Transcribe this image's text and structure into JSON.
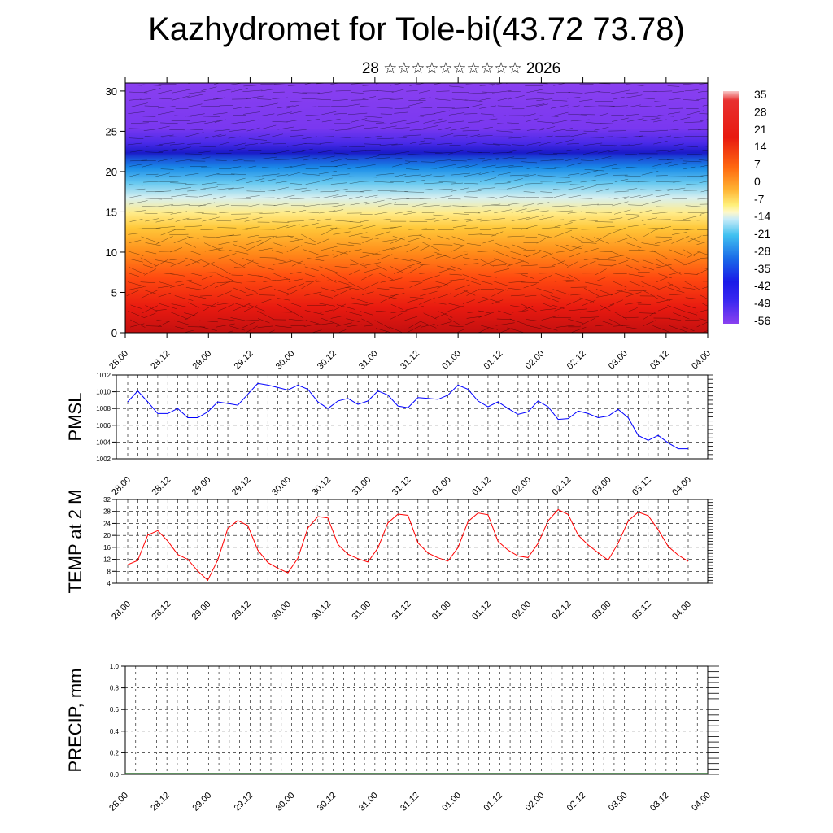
{
  "title": "Kazhydromet for Tole-bi(43.72 73.78)",
  "subtitle": "28 ☆☆☆☆☆☆☆☆☆☆ 2026",
  "chart_data": [
    {
      "type": "heatmap",
      "description_axis": "height",
      "x_tick_labels": [
        "28.00",
        "28.12",
        "29.00",
        "29.12",
        "30.00",
        "30.12",
        "31.00",
        "31.12",
        "01.00",
        "01.12",
        "02.00",
        "02.12",
        "03.00",
        "03.12",
        "04.00"
      ],
      "y_ticks": [
        0,
        5,
        10,
        15,
        20,
        25,
        30
      ],
      "ylim": [
        0,
        31
      ],
      "colorbar": {
        "labels": [
          "35",
          "28",
          "21",
          "14",
          "7",
          "0",
          "-7",
          "-14",
          "-21",
          "-28",
          "-35",
          "-42",
          "-49",
          "-56"
        ],
        "range": [
          -60,
          38
        ]
      }
    },
    {
      "type": "line",
      "ylabel": "PMSL",
      "x_tick_labels": [
        "28.00",
        "28.12",
        "29.00",
        "29.12",
        "30.00",
        "30.12",
        "31.00",
        "31.12",
        "01.00",
        "01.12",
        "02.00",
        "02.12",
        "03.00",
        "03.12",
        "04.00"
      ],
      "y_ticks": [
        1002,
        1004,
        1006,
        1008,
        1010,
        1012
      ],
      "ylim": [
        1002,
        1012
      ],
      "color": "#0000ff",
      "values": [
        1008.8,
        1010.1,
        1008.8,
        1007.4,
        1007.4,
        1008.0,
        1006.9,
        1006.9,
        1007.6,
        1008.8,
        1008.6,
        1008.4,
        1009.7,
        1011.0,
        1010.8,
        1010.5,
        1010.2,
        1010.8,
        1010.3,
        1008.8,
        1008.0,
        1008.9,
        1009.2,
        1008.5,
        1008.9,
        1010.1,
        1009.6,
        1008.3,
        1008.1,
        1009.3,
        1009.2,
        1009.1,
        1009.6,
        1010.8,
        1010.3,
        1008.9,
        1008.2,
        1008.8,
        1008.0,
        1007.3,
        1007.6,
        1008.9,
        1008.2,
        1006.7,
        1006.8,
        1007.7,
        1007.4,
        1006.9,
        1007.1,
        1007.9,
        1006.9,
        1004.8,
        1004.2,
        1004.8,
        1003.9,
        1003.2,
        1003.2
      ],
      "x_start": 0,
      "x_step": 0.25
    },
    {
      "type": "line",
      "ylabel": "TEMP at 2 M",
      "x_tick_labels": [
        "28.00",
        "28.12",
        "29.00",
        "29.12",
        "30.00",
        "30.12",
        "31.00",
        "31.12",
        "01.00",
        "01.12",
        "02.00",
        "02.12",
        "03.00",
        "03.12",
        "04.00"
      ],
      "y_ticks": [
        4,
        8,
        12,
        16,
        20,
        24,
        28,
        32
      ],
      "ylim": [
        4,
        32
      ],
      "color": "#ff0000",
      "values": [
        10.2,
        11.6,
        20.1,
        21.6,
        18.1,
        13.6,
        12.0,
        8.1,
        5.0,
        11.8,
        22.3,
        25.0,
        23.3,
        15.1,
        10.9,
        9.0,
        7.5,
        12.4,
        22.5,
        26.3,
        25.8,
        17.0,
        13.7,
        12.2,
        11.1,
        15.8,
        24.2,
        27.1,
        26.7,
        17.5,
        14.1,
        12.5,
        11.4,
        15.9,
        24.6,
        27.5,
        26.9,
        18.0,
        15.1,
        13.1,
        12.6,
        17.3,
        24.9,
        28.6,
        27.0,
        20.1,
        16.8,
        14.2,
        11.7,
        17.4,
        24.8,
        27.8,
        26.6,
        21.9,
        16.3,
        13.4,
        11.3
      ],
      "x_start": 0,
      "x_step": 0.25
    },
    {
      "type": "bar",
      "ylabel": "PRECIP, mm",
      "x_tick_labels": [
        "28.00",
        "28.12",
        "29.00",
        "29.12",
        "30.00",
        "30.12",
        "31.00",
        "31.12",
        "01.00",
        "01.12",
        "02.00",
        "02.12",
        "03.00",
        "03.12",
        "04.00"
      ],
      "y_ticks": [
        "0.0",
        "0.2",
        "0.4",
        "0.6",
        "0.8",
        "1.0"
      ],
      "ylim": [
        0,
        1
      ],
      "values": [
        0,
        0,
        0,
        0,
        0,
        0,
        0,
        0,
        0,
        0,
        0,
        0,
        0,
        0
      ]
    }
  ]
}
